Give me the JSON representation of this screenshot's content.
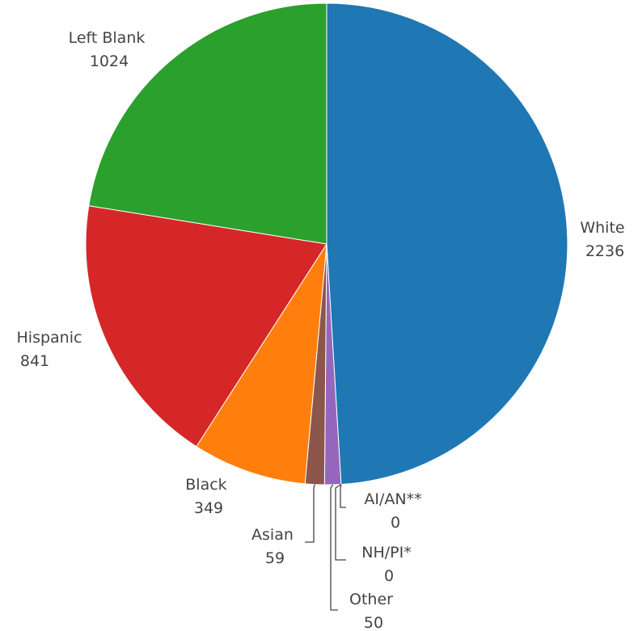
{
  "chart_data": {
    "type": "pie",
    "title": "",
    "start_angle_deg": 90,
    "direction": "clockwise",
    "slices": [
      {
        "label": "White",
        "value": 2236,
        "color": "#1f77b4"
      },
      {
        "label": "AI/AN**",
        "value": 0,
        "color": "#17becf"
      },
      {
        "label": "NH/PI*",
        "value": 0,
        "color": "#bcbd22"
      },
      {
        "label": "Other",
        "value": 50,
        "color": "#9467bd"
      },
      {
        "label": "Asian",
        "value": 59,
        "color": "#8c564b"
      },
      {
        "label": "Black",
        "value": 349,
        "color": "#ff7f0e"
      },
      {
        "label": "Hispanic",
        "value": 841,
        "color": "#d62728"
      },
      {
        "label": "Left Blank",
        "value": 1024,
        "color": "#2ca02c"
      }
    ]
  }
}
